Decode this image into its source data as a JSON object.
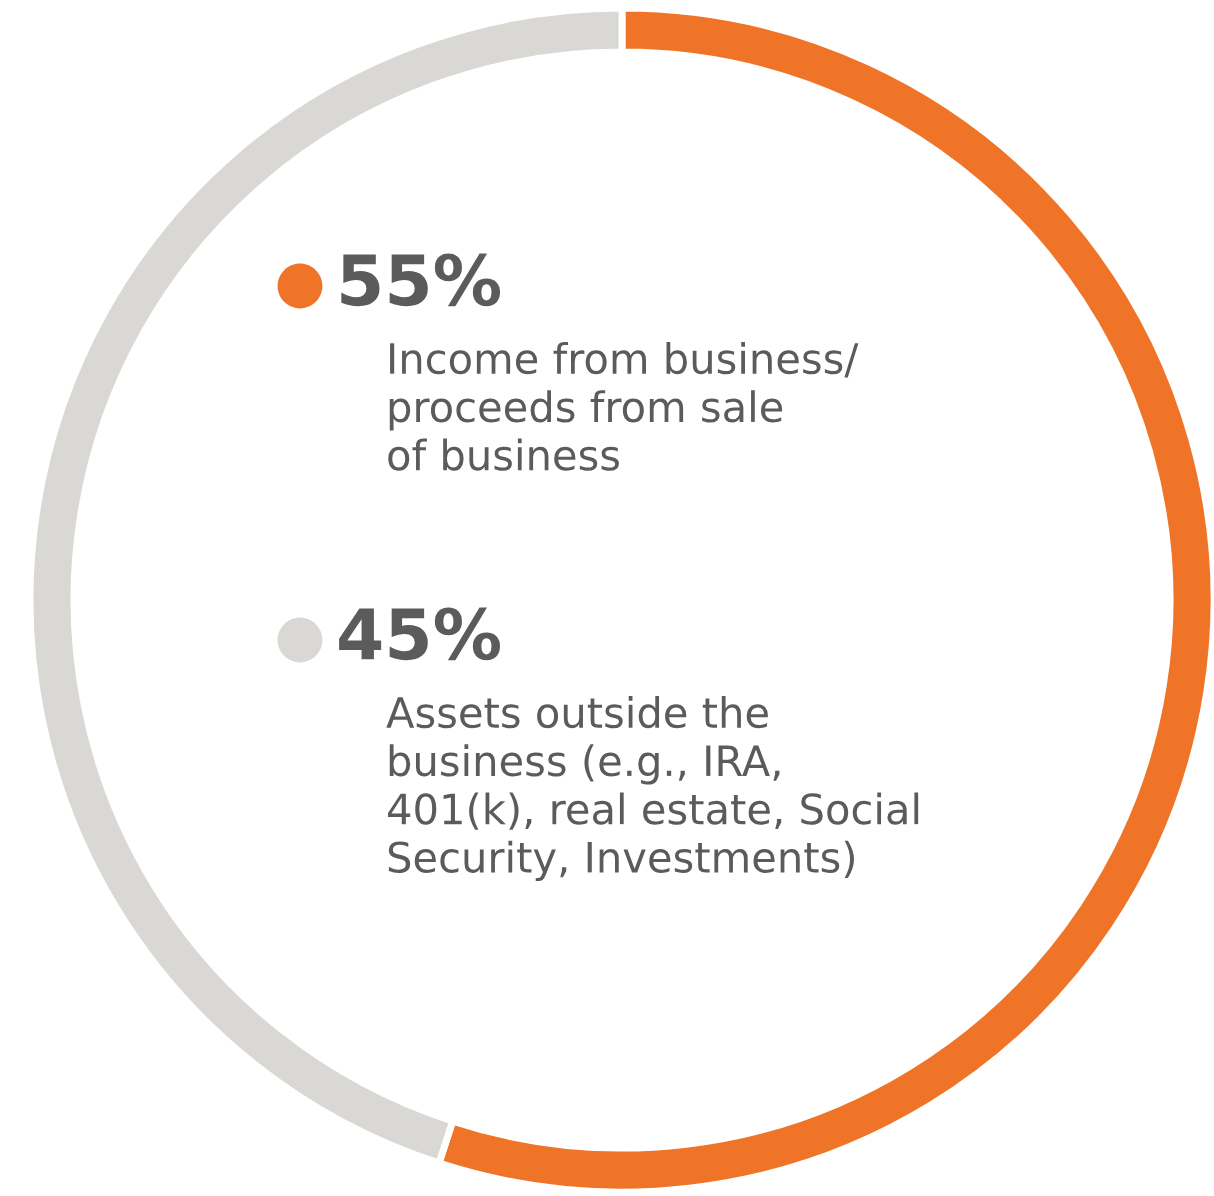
{
  "chart_data": {
    "type": "donut",
    "categories": [
      "Income from business/\nproceeds from sale\nof business",
      "Assets outside the\nbusiness (e.g., IRA,\n401(k), real estate, Social\nSecurity, Investments)"
    ],
    "values": [
      55,
      45
    ],
    "colors": [
      "#f07427",
      "#d9d8d5"
    ],
    "value_labels": [
      "55%",
      "45%"
    ]
  }
}
